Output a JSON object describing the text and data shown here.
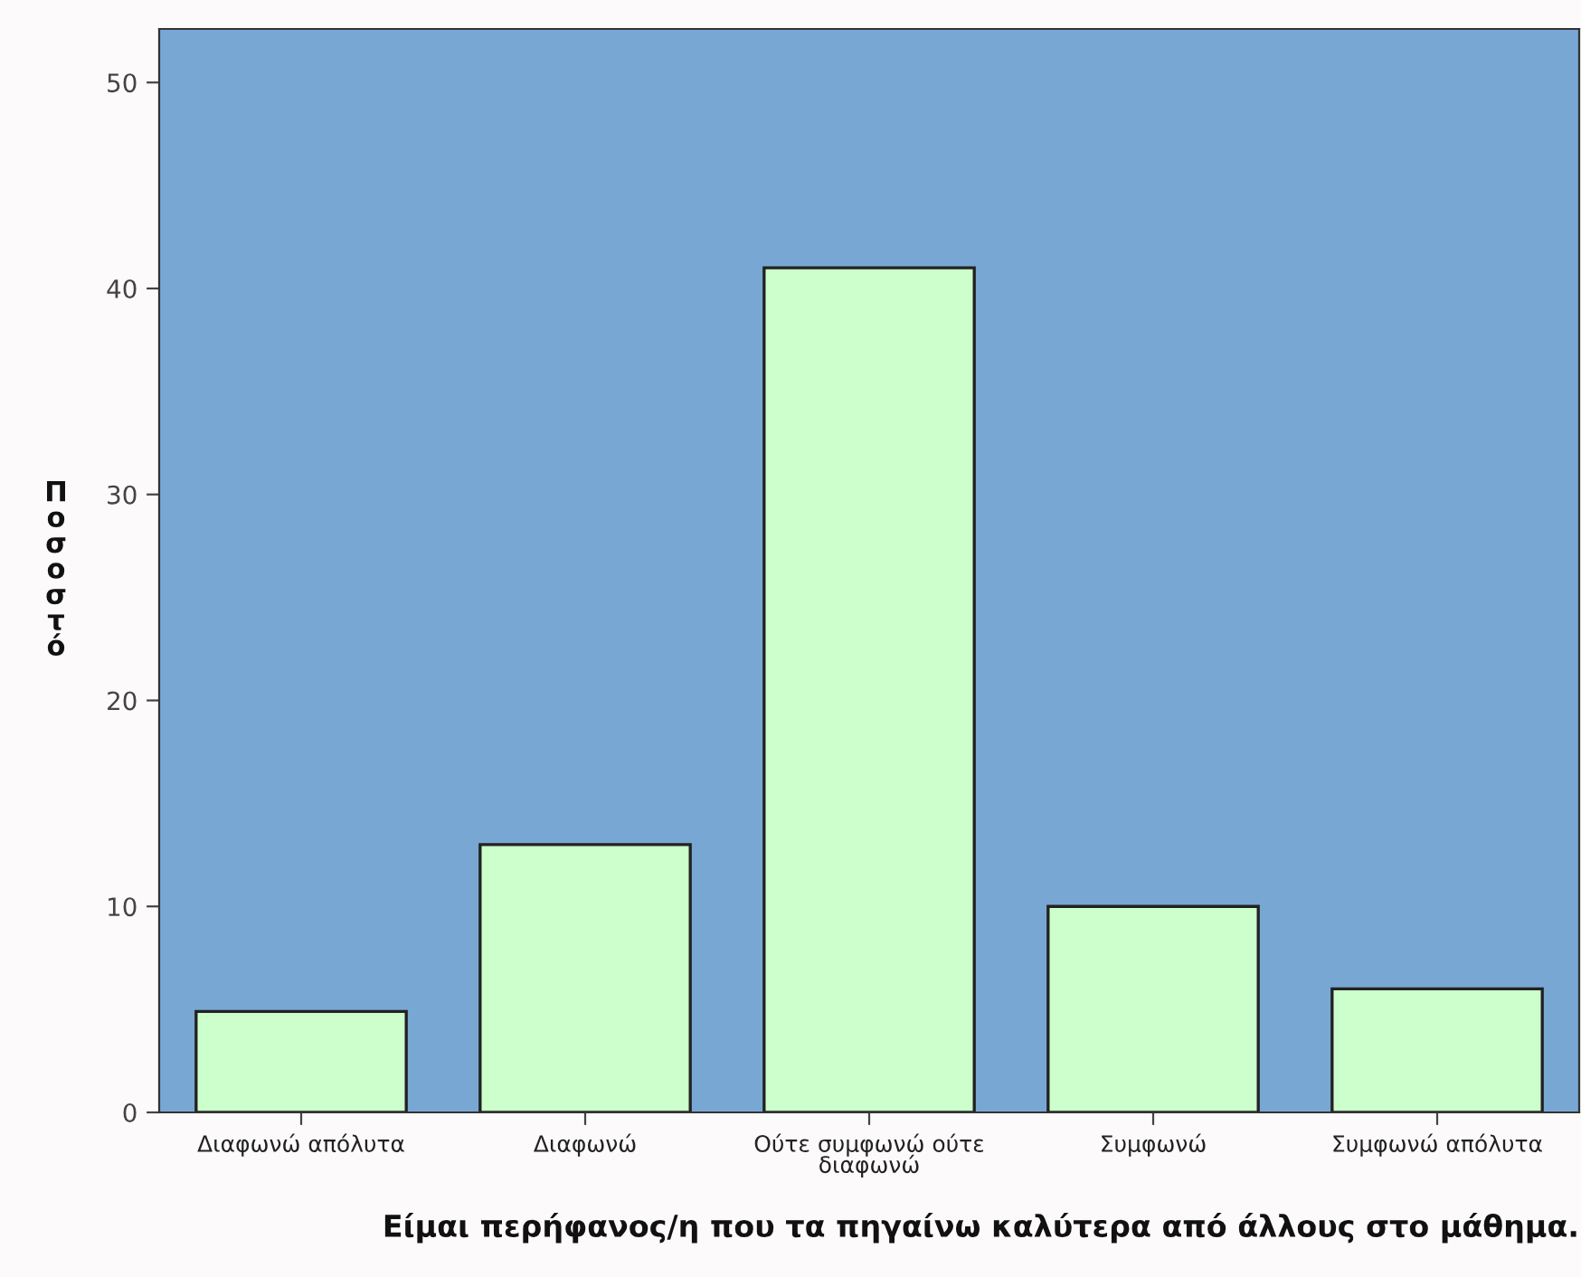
{
  "chart_data": {
    "type": "bar",
    "xlabel": "Είμαι περήφανος/η που τα πηγαίνω καλύτερα από άλλους στο μάθημα.",
    "ylabel": "Ποσοστό",
    "categories": [
      "Διαφωνώ απόλυτα",
      "Διαφωνώ",
      "Ούτε συμφωνώ ούτε\nδιαφωνώ",
      "Συμφωνώ",
      "Συμφωνώ απόλυτα"
    ],
    "values": [
      4.9,
      13,
      41,
      10,
      6
    ],
    "color": "#ccffcc",
    "ylim": [
      0,
      52.6
    ],
    "yticks": [
      0,
      10,
      20,
      30,
      40,
      50
    ],
    "grid": false,
    "legend": false
  }
}
